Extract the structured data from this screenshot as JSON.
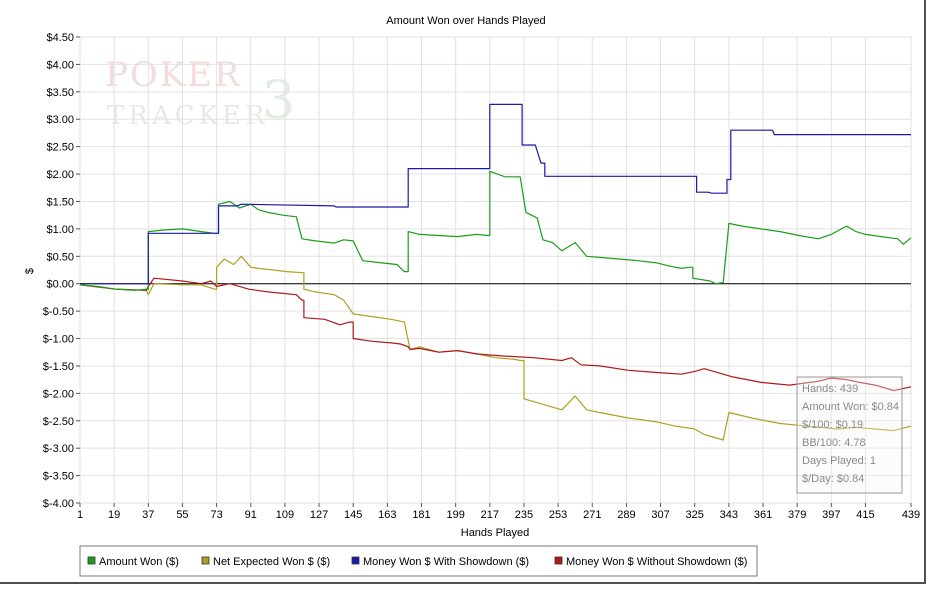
{
  "chart_data": {
    "type": "line",
    "title": "Amount Won over Hands Played",
    "xlabel": "Hands Played",
    "ylabel": "$",
    "xlim": [
      1,
      439
    ],
    "ylim": [
      -4.0,
      4.5
    ],
    "grid": true,
    "x_ticks": [
      1,
      19,
      37,
      55,
      73,
      91,
      109,
      127,
      145,
      163,
      181,
      199,
      217,
      235,
      253,
      271,
      289,
      307,
      325,
      343,
      361,
      379,
      397,
      415,
      439
    ],
    "y_ticks": [
      {
        "v": 4.5,
        "label": "$4.50"
      },
      {
        "v": 4.0,
        "label": "$4.00"
      },
      {
        "v": 3.5,
        "label": "$3.50"
      },
      {
        "v": 3.0,
        "label": "$3.00"
      },
      {
        "v": 2.5,
        "label": "$2.50"
      },
      {
        "v": 2.0,
        "label": "$2.00"
      },
      {
        "v": 1.5,
        "label": "$1.50"
      },
      {
        "v": 1.0,
        "label": "$1.00"
      },
      {
        "v": 0.5,
        "label": "$0.50"
      },
      {
        "v": 0.0,
        "label": "$0.00"
      },
      {
        "v": -0.5,
        "label": "$-0.50"
      },
      {
        "v": -1.0,
        "label": "$-1.00"
      },
      {
        "v": -1.5,
        "label": "$-1.50"
      },
      {
        "v": -2.0,
        "label": "$-2.00"
      },
      {
        "v": -2.5,
        "label": "$-2.50"
      },
      {
        "v": -3.0,
        "label": "$-3.00"
      },
      {
        "v": -3.5,
        "label": "$-3.50"
      },
      {
        "v": -4.0,
        "label": "$-4.00"
      }
    ],
    "legend_position": "bottom-left",
    "series": [
      {
        "name": "Amount Won ($)",
        "color": "#1a9e1a",
        "points": [
          [
            1,
            -0.02
          ],
          [
            10,
            -0.05
          ],
          [
            20,
            -0.1
          ],
          [
            30,
            -0.12
          ],
          [
            36,
            -0.1
          ],
          [
            37,
            0.95
          ],
          [
            45,
            0.98
          ],
          [
            55,
            1.0
          ],
          [
            65,
            0.95
          ],
          [
            72,
            0.92
          ],
          [
            74,
            1.45
          ],
          [
            80,
            1.5
          ],
          [
            85,
            1.38
          ],
          [
            91,
            1.45
          ],
          [
            95,
            1.35
          ],
          [
            100,
            1.3
          ],
          [
            108,
            1.25
          ],
          [
            115,
            1.22
          ],
          [
            118,
            0.82
          ],
          [
            125,
            0.78
          ],
          [
            135,
            0.74
          ],
          [
            140,
            0.8
          ],
          [
            145,
            0.78
          ],
          [
            150,
            0.42
          ],
          [
            160,
            0.38
          ],
          [
            168,
            0.35
          ],
          [
            172,
            0.22
          ],
          [
            174,
            0.95
          ],
          [
            180,
            0.9
          ],
          [
            190,
            0.88
          ],
          [
            200,
            0.86
          ],
          [
            210,
            0.9
          ],
          [
            216,
            0.88
          ],
          [
            217,
            2.05
          ],
          [
            225,
            1.95
          ],
          [
            233,
            1.95
          ],
          [
            236,
            1.3
          ],
          [
            242,
            1.2
          ],
          [
            245,
            0.8
          ],
          [
            250,
            0.75
          ],
          [
            255,
            0.6
          ],
          [
            262,
            0.75
          ],
          [
            268,
            0.5
          ],
          [
            275,
            0.48
          ],
          [
            285,
            0.45
          ],
          [
            295,
            0.42
          ],
          [
            305,
            0.38
          ],
          [
            312,
            0.32
          ],
          [
            318,
            0.28
          ],
          [
            322,
            0.3
          ],
          [
            324,
            0.1
          ],
          [
            333,
            0.05
          ],
          [
            336,
            0.0
          ],
          [
            340,
            0.02
          ],
          [
            343,
            1.1
          ],
          [
            350,
            1.05
          ],
          [
            360,
            1.0
          ],
          [
            370,
            0.95
          ],
          [
            380,
            0.88
          ],
          [
            390,
            0.82
          ],
          [
            397,
            0.9
          ],
          [
            405,
            1.05
          ],
          [
            410,
            0.95
          ],
          [
            415,
            0.9
          ],
          [
            425,
            0.85
          ],
          [
            432,
            0.82
          ],
          [
            435,
            0.72
          ],
          [
            439,
            0.84
          ]
        ]
      },
      {
        "name": "Net Expected Won $ ($)",
        "color": "#b0a020",
        "points": [
          [
            1,
            -0.02
          ],
          [
            20,
            -0.1
          ],
          [
            36,
            -0.12
          ],
          [
            37,
            -0.2
          ],
          [
            40,
            0.0
          ],
          [
            55,
            -0.02
          ],
          [
            65,
            -0.02
          ],
          [
            72,
            -0.1
          ],
          [
            73,
            0.3
          ],
          [
            77,
            0.45
          ],
          [
            82,
            0.35
          ],
          [
            86,
            0.5
          ],
          [
            91,
            0.3
          ],
          [
            95,
            0.28
          ],
          [
            103,
            0.25
          ],
          [
            110,
            0.22
          ],
          [
            118,
            0.2
          ],
          [
            119,
            -0.1
          ],
          [
            125,
            -0.15
          ],
          [
            135,
            -0.2
          ],
          [
            140,
            -0.3
          ],
          [
            145,
            -0.55
          ],
          [
            155,
            -0.6
          ],
          [
            165,
            -0.65
          ],
          [
            172,
            -0.7
          ],
          [
            175,
            -1.2
          ],
          [
            180,
            -1.15
          ],
          [
            190,
            -1.25
          ],
          [
            200,
            -1.22
          ],
          [
            210,
            -1.28
          ],
          [
            220,
            -1.35
          ],
          [
            230,
            -1.38
          ],
          [
            233,
            -1.4
          ],
          [
            235,
            -2.1
          ],
          [
            240,
            -2.15
          ],
          [
            245,
            -2.2
          ],
          [
            250,
            -2.25
          ],
          [
            255,
            -2.3
          ],
          [
            262,
            -2.05
          ],
          [
            268,
            -2.3
          ],
          [
            275,
            -2.35
          ],
          [
            290,
            -2.45
          ],
          [
            305,
            -2.52
          ],
          [
            315,
            -2.6
          ],
          [
            325,
            -2.65
          ],
          [
            330,
            -2.75
          ],
          [
            340,
            -2.85
          ],
          [
            343,
            -2.35
          ],
          [
            355,
            -2.45
          ],
          [
            370,
            -2.55
          ],
          [
            385,
            -2.6
          ],
          [
            400,
            -2.65
          ],
          [
            410,
            -2.62
          ],
          [
            420,
            -2.65
          ],
          [
            430,
            -2.68
          ],
          [
            439,
            -2.6
          ]
        ]
      },
      {
        "name": "Money Won $ With Showdown ($)",
        "color": "#1a1aa8",
        "points": [
          [
            1,
            0.0
          ],
          [
            36,
            0.0
          ],
          [
            37,
            0.92
          ],
          [
            72,
            0.92
          ],
          [
            74,
            1.42
          ],
          [
            84,
            1.42
          ],
          [
            86,
            1.45
          ],
          [
            135,
            1.42
          ],
          [
            136,
            1.4
          ],
          [
            173,
            1.4
          ],
          [
            174,
            2.1
          ],
          [
            216,
            2.1
          ],
          [
            217,
            3.27
          ],
          [
            233,
            3.27
          ],
          [
            234,
            2.53
          ],
          [
            241,
            2.53
          ],
          [
            244,
            2.2
          ],
          [
            246,
            1.96
          ],
          [
            325,
            1.96
          ],
          [
            326,
            1.67
          ],
          [
            332,
            1.67
          ],
          [
            334,
            1.65
          ],
          [
            340,
            1.65
          ],
          [
            342,
            1.9
          ],
          [
            344,
            2.8
          ],
          [
            366,
            2.8
          ],
          [
            367,
            2.72
          ],
          [
            439,
            2.72
          ]
        ]
      },
      {
        "name": "Money Won $ Without Showdown ($)",
        "color": "#b01818",
        "points": [
          [
            1,
            -0.02
          ],
          [
            20,
            -0.1
          ],
          [
            36,
            -0.12
          ],
          [
            37,
            -0.05
          ],
          [
            40,
            0.1
          ],
          [
            55,
            0.05
          ],
          [
            65,
            0.0
          ],
          [
            70,
            0.05
          ],
          [
            73,
            -0.05
          ],
          [
            80,
            0.0
          ],
          [
            85,
            -0.05
          ],
          [
            90,
            -0.1
          ],
          [
            100,
            -0.15
          ],
          [
            115,
            -0.2
          ],
          [
            118,
            -0.3
          ],
          [
            119,
            -0.62
          ],
          [
            130,
            -0.65
          ],
          [
            138,
            -0.75
          ],
          [
            143,
            -0.7
          ],
          [
            145,
            -1.0
          ],
          [
            155,
            -1.05
          ],
          [
            165,
            -1.08
          ],
          [
            170,
            -1.1
          ],
          [
            174,
            -1.15
          ],
          [
            175,
            -1.2
          ],
          [
            180,
            -1.18
          ],
          [
            190,
            -1.25
          ],
          [
            200,
            -1.22
          ],
          [
            210,
            -1.28
          ],
          [
            217,
            -1.3
          ],
          [
            225,
            -1.32
          ],
          [
            240,
            -1.35
          ],
          [
            255,
            -1.4
          ],
          [
            260,
            -1.35
          ],
          [
            265,
            -1.48
          ],
          [
            275,
            -1.5
          ],
          [
            290,
            -1.58
          ],
          [
            305,
            -1.62
          ],
          [
            318,
            -1.65
          ],
          [
            325,
            -1.6
          ],
          [
            330,
            -1.55
          ],
          [
            335,
            -1.6
          ],
          [
            345,
            -1.7
          ],
          [
            360,
            -1.8
          ],
          [
            375,
            -1.85
          ],
          [
            390,
            -1.78
          ],
          [
            397,
            -1.72
          ],
          [
            405,
            -1.75
          ],
          [
            412,
            -1.8
          ],
          [
            420,
            -1.85
          ],
          [
            430,
            -1.95
          ],
          [
            439,
            -1.88
          ]
        ]
      }
    ]
  },
  "watermark": {
    "line1": "POKER",
    "line2": "TRACKER",
    "digit": "3"
  },
  "tooltip": {
    "lines": [
      "Hands: 439",
      "Amount Won: $0.84",
      "$/100: $0.19",
      "BB/100: 4.78",
      "Days Played: 1",
      "$/Day: $0.84"
    ]
  }
}
